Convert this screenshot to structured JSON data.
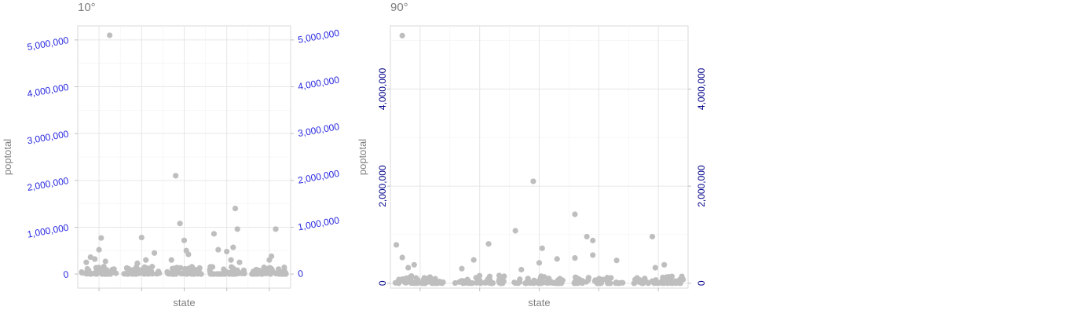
{
  "chart_data": [
    {
      "type": "scatter",
      "title": "10°",
      "xlabel": "state",
      "ylabel": "poptotal",
      "ylim": [
        -300000,
        5300000
      ],
      "yticks": [
        0,
        1000000,
        2000000,
        3000000,
        4000000,
        5000000
      ],
      "ytick_labels": [
        "0",
        "1,000,000",
        "2,000,000",
        "3,000,000",
        "4,000,000",
        "5,000,000"
      ],
      "tick_angle": 10,
      "tick_color": "#2a2ae0",
      "secondary_y_axis": true,
      "grid": true,
      "point_color": "#bebebe",
      "groups": [
        {
          "x_range": [
            -0.42,
            0.42
          ],
          "outliers": [
            [
              -0.3,
              250000
            ],
            [
              -0.2,
              360000
            ],
            [
              -0.1,
              320000
            ],
            [
              0.0,
              520000
            ],
            [
              0.05,
              770000
            ],
            [
              0.15,
              270000
            ],
            [
              0.25,
              5100000
            ]
          ]
        },
        {
          "x_range": [
            -0.42,
            0.42
          ],
          "outliers": [
            [
              -0.1,
              230000
            ],
            [
              0.0,
              780000
            ],
            [
              0.1,
              300000
            ],
            [
              0.3,
              450000
            ]
          ]
        },
        {
          "x_range": [
            -0.42,
            0.42
          ],
          "outliers": [
            [
              -0.3,
              300000
            ],
            [
              -0.2,
              2100000
            ],
            [
              -0.1,
              1080000
            ],
            [
              0.0,
              720000
            ],
            [
              0.05,
              500000
            ],
            [
              0.1,
              420000
            ]
          ]
        },
        {
          "x_range": [
            -0.42,
            0.42
          ],
          "outliers": [
            [
              -0.3,
              860000
            ],
            [
              -0.2,
              520000
            ],
            [
              0.0,
              480000
            ],
            [
              0.1,
              300000
            ],
            [
              0.15,
              570000
            ],
            [
              0.2,
              1400000
            ],
            [
              0.25,
              960000
            ],
            [
              0.3,
              250000
            ]
          ]
        },
        {
          "x_range": [
            -0.42,
            0.42
          ],
          "outliers": [
            [
              0.0,
              300000
            ],
            [
              0.05,
              380000
            ],
            [
              0.15,
              960000
            ]
          ]
        }
      ]
    },
    {
      "type": "scatter",
      "title": "90°",
      "xlabel": "state",
      "ylabel": "poptotal",
      "ylim": [
        -100000,
        5300000
      ],
      "yticks": [
        0,
        2000000,
        4000000
      ],
      "ytick_labels": [
        "0",
        "2,000,000",
        "4,000,000"
      ],
      "tick_angle": 90,
      "tick_color": "#00008b",
      "secondary_y_axis": true,
      "grid": true,
      "point_color": "#bebebe",
      "groups": [
        {
          "x_range": [
            -0.42,
            0.42
          ],
          "outliers": [
            [
              -0.4,
              790000
            ],
            [
              -0.3,
              530000
            ],
            [
              -0.2,
              320000
            ],
            [
              -0.1,
              380000
            ],
            [
              -0.3,
              5100000
            ]
          ]
        },
        {
          "x_range": [
            -0.42,
            0.42
          ],
          "outliers": [
            [
              -0.3,
              300000
            ],
            [
              -0.1,
              480000
            ],
            [
              0.15,
              810000
            ]
          ]
        },
        {
          "x_range": [
            -0.42,
            0.42
          ],
          "outliers": [
            [
              -0.4,
              1080000
            ],
            [
              -0.3,
              280000
            ],
            [
              -0.1,
              2100000
            ],
            [
              0.0,
              420000
            ],
            [
              0.05,
              720000
            ],
            [
              0.3,
              500000
            ]
          ]
        },
        {
          "x_range": [
            -0.42,
            0.42
          ],
          "outliers": [
            [
              -0.4,
              1420000
            ],
            [
              -0.4,
              520000
            ],
            [
              -0.2,
              960000
            ],
            [
              -0.1,
              580000
            ],
            [
              -0.1,
              880000
            ],
            [
              0.3,
              470000
            ]
          ]
        },
        {
          "x_range": [
            -0.42,
            0.42
          ],
          "outliers": [
            [
              -0.1,
              960000
            ],
            [
              -0.05,
              320000
            ],
            [
              0.1,
              380000
            ]
          ]
        }
      ]
    }
  ]
}
